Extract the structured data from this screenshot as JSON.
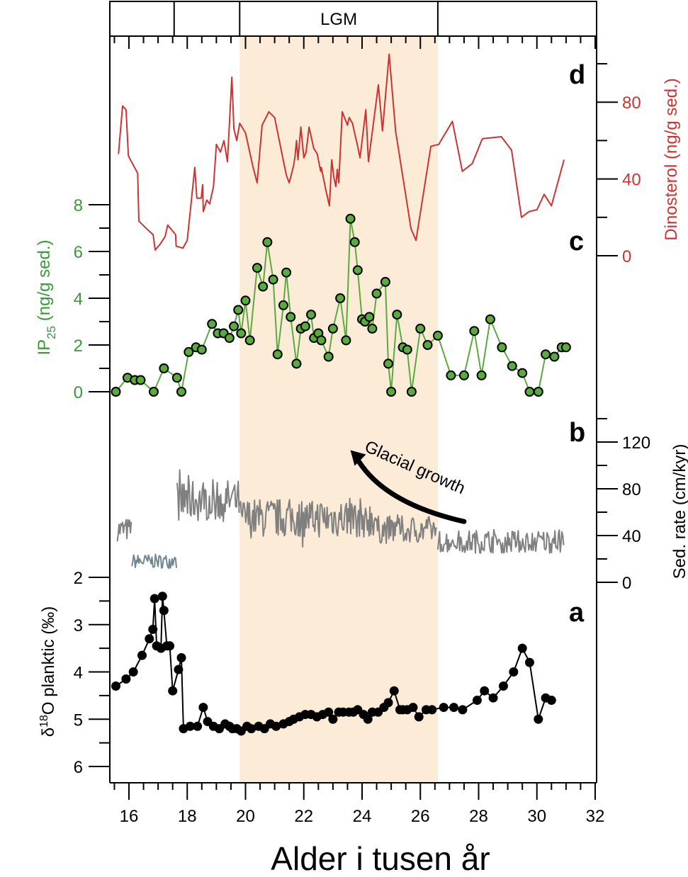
{
  "chart_data": {
    "type": "line",
    "title": "",
    "xlabel": "Alder i tusen år",
    "x_axis": {
      "range": [
        15.4,
        32
      ],
      "ticks": [
        16,
        18,
        20,
        22,
        24,
        26,
        28,
        30,
        32
      ],
      "minor_step": 0.5
    },
    "shaded_interval": {
      "label": "LGM",
      "range": [
        19.8,
        26.6
      ],
      "color": "#fcebd6"
    },
    "top_bar": {
      "boundaries": [
        15.4,
        17.55,
        19.8,
        26.6,
        32
      ],
      "labels": [
        "",
        "",
        "LGM",
        ""
      ]
    },
    "panels": [
      {
        "id": "d",
        "letter": "d",
        "type": "line",
        "name": "Dinosterol",
        "ylabel": "Dinosterol (ng/g sed.)",
        "axis_side": "right",
        "color": "#cc3333",
        "ylim": [
          0,
          100
        ],
        "ticks": [
          0,
          40,
          80
        ],
        "minor_ticks": [
          20,
          60,
          100
        ],
        "x": [
          15.64,
          15.78,
          15.9,
          15.98,
          16.3,
          16.34,
          16.68,
          16.83,
          16.9,
          17.07,
          17.24,
          17.33,
          17.6,
          17.62,
          17.85,
          18.0,
          18.26,
          18.33,
          18.48,
          18.53,
          18.55,
          18.67,
          18.77,
          18.9,
          19.0,
          19.14,
          19.26,
          19.38,
          19.53,
          19.6,
          19.7,
          19.8,
          20.0,
          20.26,
          20.4,
          20.57,
          20.8,
          21.0,
          21.2,
          21.4,
          21.5,
          21.65,
          21.7,
          21.75,
          21.8,
          21.9,
          22.0,
          22.08,
          22.18,
          22.34,
          22.46,
          22.58,
          22.6,
          22.76,
          22.88,
          22.96,
          23.03,
          23.1,
          23.15,
          23.2,
          23.32,
          23.5,
          23.56,
          23.67,
          23.85,
          23.93,
          24.13,
          24.22,
          24.56,
          24.7,
          24.93,
          25.15,
          25.68,
          25.85,
          26.36,
          26.63,
          27.1,
          27.44,
          27.78,
          28.13,
          28.78,
          29.13,
          29.47,
          29.73,
          30.0,
          30.25,
          30.5,
          30.93
        ],
        "values": [
          53,
          78,
          76,
          52,
          43,
          18,
          13,
          11,
          3,
          6,
          10,
          16,
          11,
          5,
          4,
          8,
          46,
          30,
          30,
          37,
          23,
          29,
          27,
          36,
          58,
          54,
          60,
          49,
          93,
          66,
          60,
          69,
          64,
          46,
          38,
          68,
          75,
          72,
          57,
          42,
          38,
          47,
          52,
          60,
          50,
          67,
          51,
          54,
          67,
          56,
          53,
          44,
          46,
          34,
          26,
          50,
          41,
          36,
          45,
          38,
          75,
          68,
          72,
          69,
          57,
          51,
          76,
          49,
          89,
          65,
          105,
          65,
          14,
          8,
          57,
          58,
          70,
          44,
          48,
          61,
          62,
          55,
          20,
          23,
          24,
          32,
          26,
          50
        ]
      },
      {
        "id": "c",
        "letter": "c",
        "type": "line+markers",
        "name": "IP25",
        "ylabel": "IP25 (ng/g sed.)",
        "ylabel_main": "IP",
        "ylabel_sub": "25",
        "ylabel_rest": " (ng/g sed.)",
        "axis_side": "left",
        "color": "#3a9a3a",
        "marker_fill": "#5aab3e",
        "ylim": [
          0,
          8
        ],
        "ticks": [
          0,
          2,
          4,
          6,
          8
        ],
        "minor_ticks": [
          1,
          3,
          5,
          7
        ],
        "x": [
          15.55,
          15.95,
          16.2,
          16.4,
          16.85,
          17.2,
          17.65,
          17.8,
          18.05,
          18.3,
          18.5,
          18.85,
          19.05,
          19.25,
          19.45,
          19.6,
          19.75,
          19.85,
          20.0,
          20.15,
          20.4,
          20.6,
          20.75,
          20.95,
          21.1,
          21.3,
          21.4,
          21.55,
          21.75,
          21.9,
          22.05,
          22.25,
          22.35,
          22.5,
          22.6,
          22.85,
          23.0,
          23.25,
          23.45,
          23.6,
          23.75,
          23.85,
          24.0,
          24.1,
          24.25,
          24.35,
          24.5,
          24.8,
          24.9,
          25.0,
          25.2,
          25.4,
          25.55,
          25.7,
          26.0,
          26.25,
          26.6,
          27.05,
          27.5,
          27.85,
          28.1,
          28.4,
          28.8,
          29.15,
          29.5,
          29.75,
          30.05,
          30.3,
          30.6,
          30.85,
          31.0
        ],
        "values": [
          0,
          0.6,
          0.5,
          0.5,
          0,
          1.0,
          0.6,
          0,
          1.7,
          1.9,
          1.8,
          2.9,
          2.5,
          2.5,
          2.3,
          2.8,
          3.5,
          2.5,
          3.9,
          2.2,
          5.3,
          4.5,
          6.4,
          4.8,
          1.6,
          3.7,
          5.1,
          3.2,
          1.2,
          2.7,
          2.8,
          3.3,
          2.3,
          2.5,
          2.2,
          1.5,
          2.7,
          4.0,
          2.2,
          7.4,
          6.4,
          5.2,
          3.1,
          3.0,
          3.2,
          2.7,
          4.2,
          4.7,
          1.2,
          0,
          3.3,
          1.9,
          1.8,
          0,
          2.7,
          2.0,
          2.4,
          0.7,
          0.7,
          2.6,
          0.7,
          3.1,
          1.9,
          1.1,
          0.8,
          0,
          0,
          1.6,
          1.5,
          1.9,
          1.9
        ]
      },
      {
        "id": "b",
        "letter": "b",
        "type": "line",
        "name": "Sedimentation rate",
        "ylabel": "Sed. rate (cm/kyr)",
        "axis_side": "right",
        "color": "#808080",
        "ylim": [
          0,
          140
        ],
        "ticks": [
          0,
          40,
          80,
          120
        ],
        "minor_ticks": [
          20,
          60,
          100,
          140
        ],
        "segments": [
          {
            "x_range": [
              15.6,
              16.1
            ],
            "mean": 45,
            "amp": 10
          },
          {
            "x_range": [
              16.1,
              17.65
            ],
            "mean": 18,
            "amp": 6
          },
          {
            "x_range": [
              17.65,
              19.8
            ],
            "mean": 70,
            "amp": 18
          },
          {
            "x_range": [
              19.8,
              24.5
            ],
            "mean": 55,
            "amp": 17
          },
          {
            "x_range": [
              24.5,
              26.6
            ],
            "mean": 45,
            "amp": 12
          },
          {
            "x_range": [
              26.6,
              30.95
            ],
            "mean": 35,
            "amp": 10
          }
        ],
        "annotation": {
          "text": "Glacial growth",
          "arrow_from": [
            27.5,
            52
          ],
          "arrow_to": [
            23.6,
            113
          ]
        }
      },
      {
        "id": "a",
        "letter": "a",
        "type": "line+markers",
        "name": "δ18O planktic",
        "ylabel": "δ18O planktic (‰)",
        "ylabel_main": "δ",
        "ylabel_sup": "18",
        "ylabel_rest": "O planktic (‰)",
        "axis_side": "left",
        "color": "#000000",
        "inverted": true,
        "ylim": [
          2,
          6.3
        ],
        "ticks": [
          2,
          3,
          4,
          5,
          6
        ],
        "minor_ticks": [
          2.5,
          3.5,
          4.5,
          5.5
        ],
        "x": [
          15.55,
          15.9,
          16.15,
          16.45,
          16.7,
          16.82,
          16.88,
          16.95,
          17.1,
          17.15,
          17.2,
          17.3,
          17.4,
          17.5,
          17.7,
          17.8,
          17.87,
          18.1,
          18.35,
          18.55,
          18.7,
          18.9,
          19.1,
          19.3,
          19.45,
          19.55,
          19.7,
          19.85,
          20.05,
          20.2,
          20.45,
          20.65,
          20.85,
          21.05,
          21.3,
          21.5,
          21.65,
          21.85,
          22.05,
          22.25,
          22.45,
          22.65,
          22.85,
          23.0,
          23.2,
          23.35,
          23.55,
          23.7,
          23.85,
          24.05,
          24.2,
          24.35,
          24.55,
          24.75,
          24.9,
          25.1,
          25.3,
          25.4,
          25.55,
          25.75,
          25.95,
          26.2,
          26.4,
          26.8,
          27.15,
          27.45,
          27.95,
          28.2,
          28.5,
          28.85,
          29.2,
          29.5,
          29.75,
          30.05,
          30.3,
          30.5
        ],
        "values": [
          4.3,
          4.15,
          4.0,
          3.65,
          3.3,
          3.1,
          2.45,
          3.45,
          3.5,
          2.4,
          2.7,
          3.45,
          3.45,
          4.4,
          3.95,
          3.7,
          5.2,
          5.15,
          5.15,
          4.75,
          5.05,
          5.15,
          5.2,
          5.1,
          5.15,
          5.2,
          5.2,
          5.25,
          5.15,
          5.2,
          5.15,
          5.2,
          5.1,
          5.15,
          5.1,
          5.05,
          5.0,
          4.95,
          4.9,
          4.9,
          4.95,
          4.9,
          4.85,
          5.0,
          4.85,
          4.85,
          4.85,
          4.85,
          4.8,
          4.9,
          5.0,
          4.85,
          4.85,
          4.75,
          4.65,
          4.4,
          4.8,
          4.8,
          4.8,
          4.75,
          4.95,
          4.8,
          4.8,
          4.75,
          4.75,
          4.8,
          4.6,
          4.4,
          4.55,
          4.3,
          4.0,
          3.5,
          3.8,
          5.0,
          4.55,
          4.6
        ]
      }
    ]
  }
}
